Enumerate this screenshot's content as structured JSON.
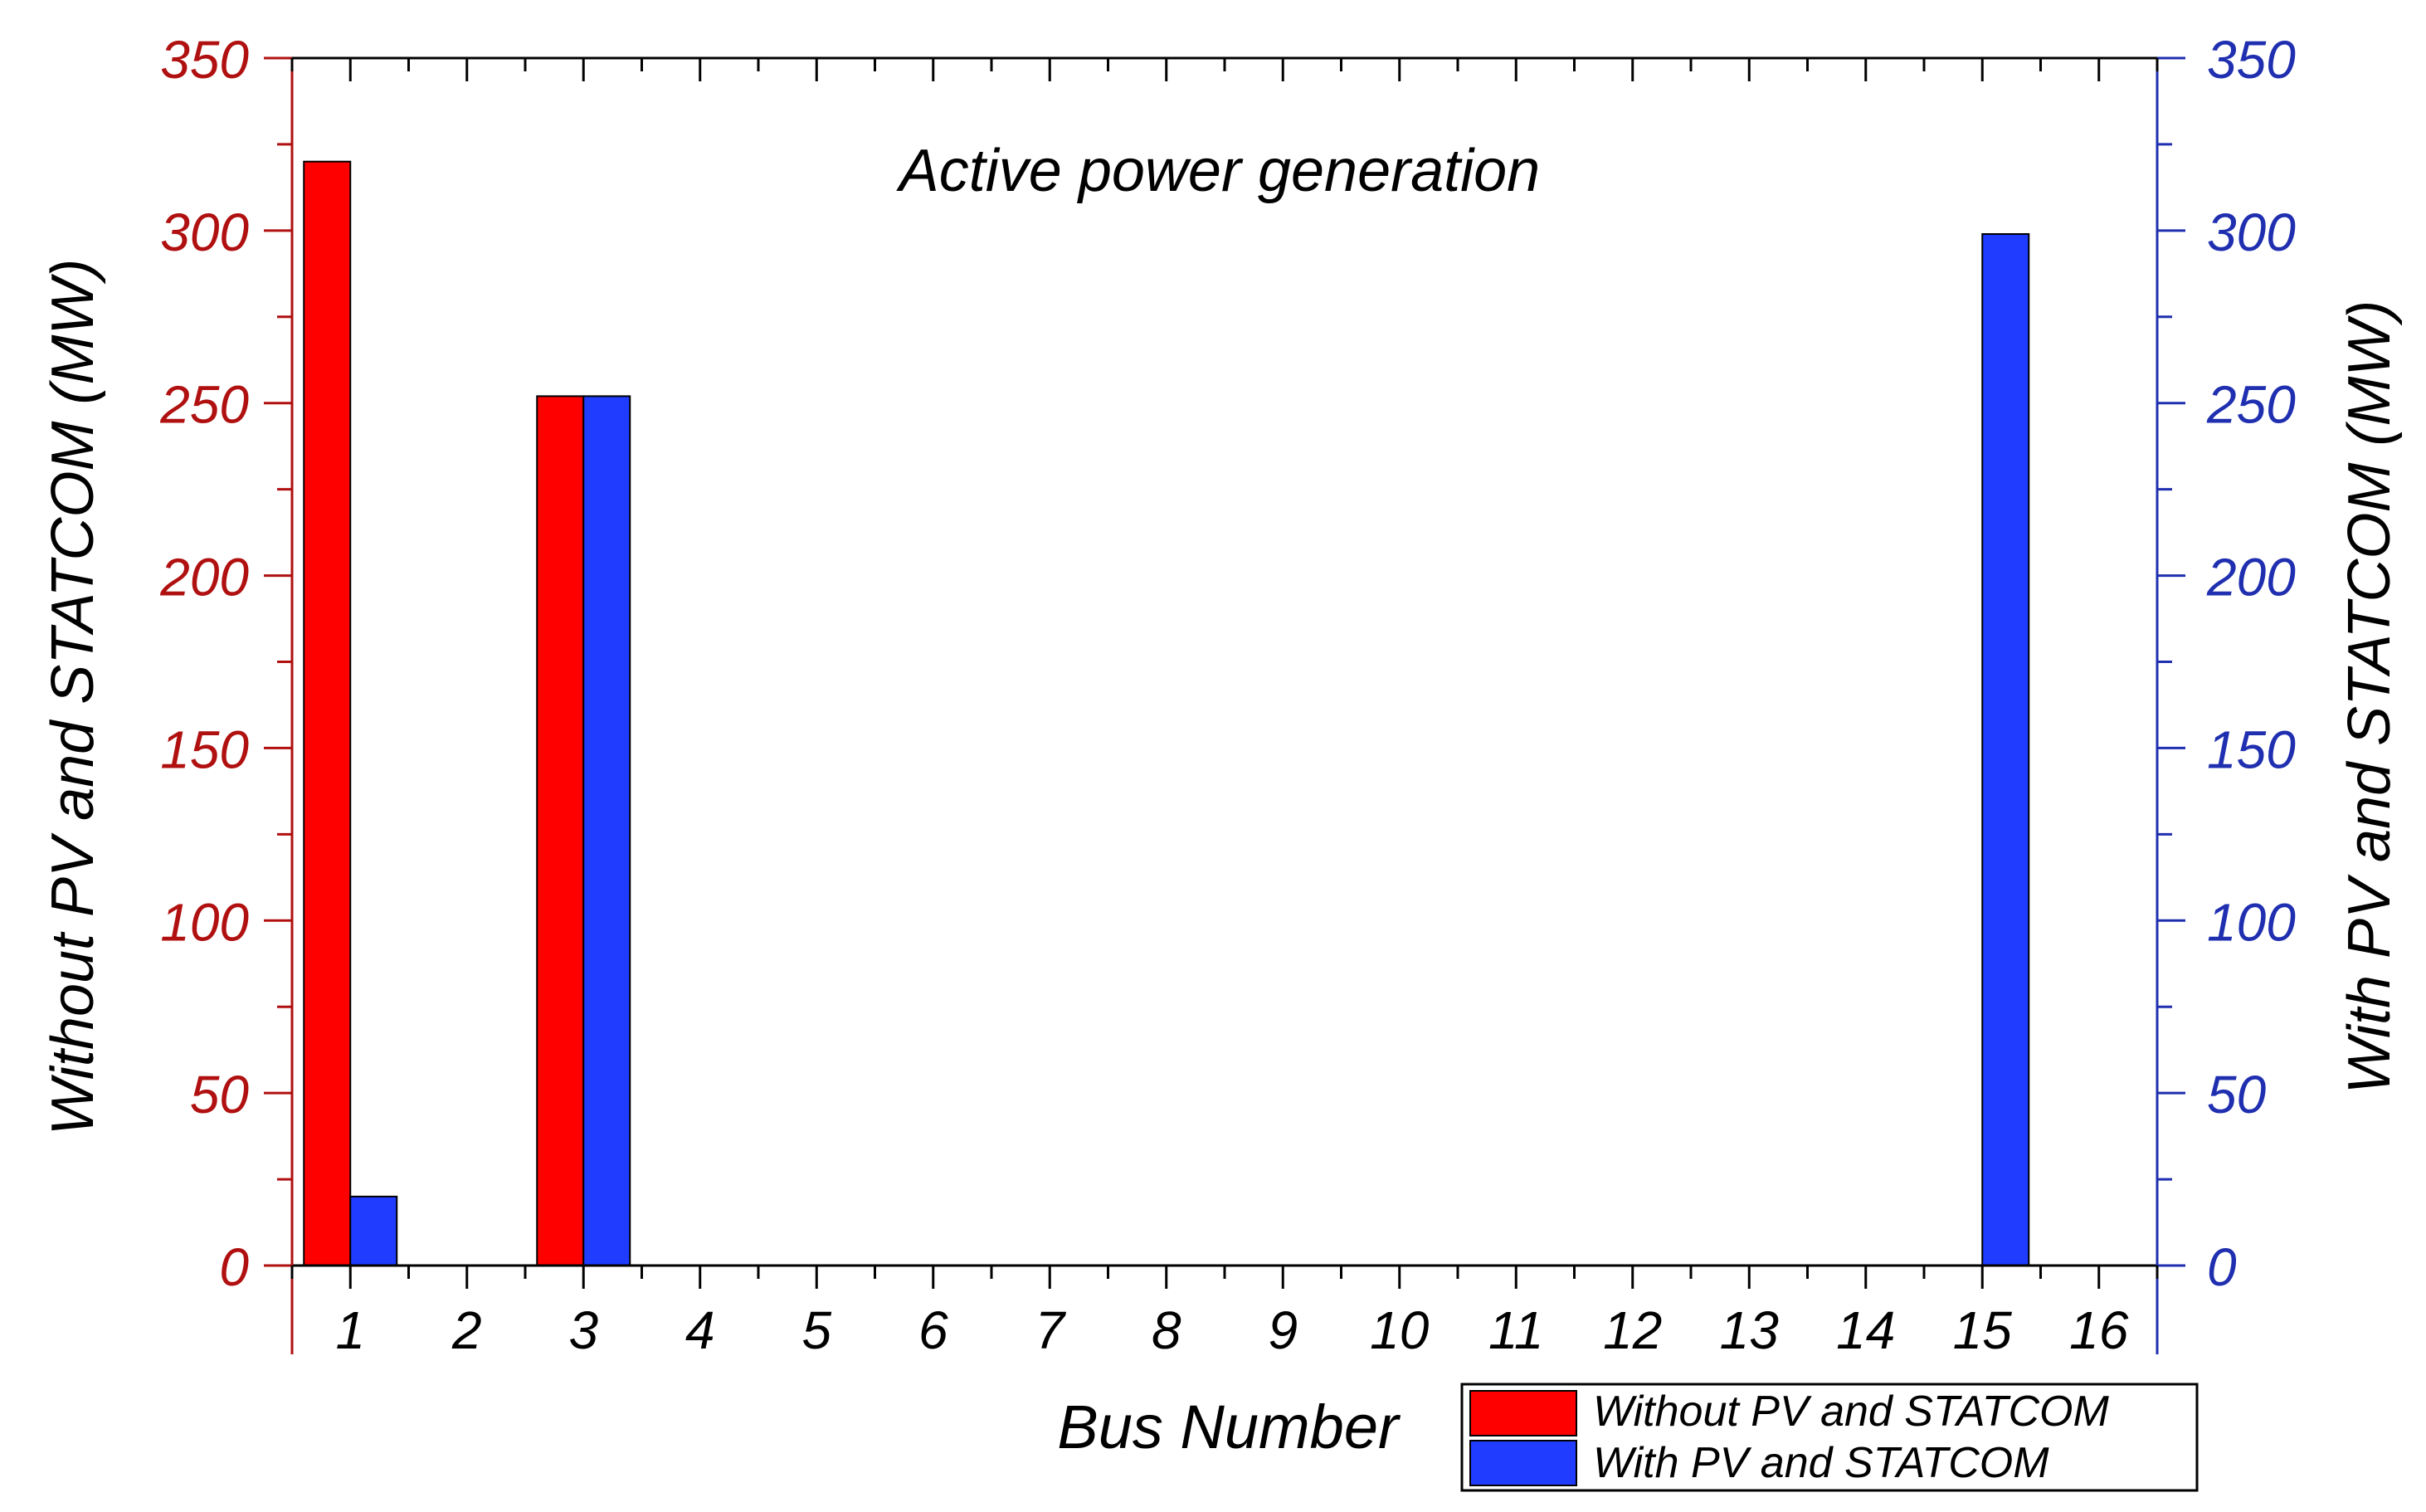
{
  "chart_data": {
    "type": "bar",
    "title": "Active power generation",
    "xlabel": "Bus Number",
    "ylabel_left": "Without PV and STATCOM (MW)",
    "ylabel_right": "With PV and STATCOM (MW)",
    "categories": [
      "1",
      "2",
      "3",
      "4",
      "5",
      "6",
      "7",
      "8",
      "9",
      "10",
      "11",
      "12",
      "13",
      "14",
      "15",
      "16"
    ],
    "ylim": [
      0,
      350
    ],
    "yticks": [
      0,
      50,
      100,
      150,
      200,
      250,
      300,
      350
    ],
    "grid": false,
    "legend_position": "bottom-right, outside plot",
    "series": [
      {
        "name": "Without PV and STATCOM",
        "color": "#ff0000",
        "axis": "left",
        "values": [
          320,
          0,
          252,
          0,
          0,
          0,
          0,
          0,
          0,
          0,
          0,
          0,
          0,
          0,
          0,
          0
        ]
      },
      {
        "name": "With PV and STATCOM",
        "color": "#1f3cff",
        "axis": "right",
        "values": [
          20,
          0,
          252,
          0,
          0,
          0,
          0,
          0,
          0,
          0,
          0,
          0,
          0,
          0,
          299,
          0
        ]
      }
    ],
    "colors": {
      "left_axis": "#b01010",
      "right_axis": "#1f2fb0",
      "frame": "#000000"
    }
  }
}
